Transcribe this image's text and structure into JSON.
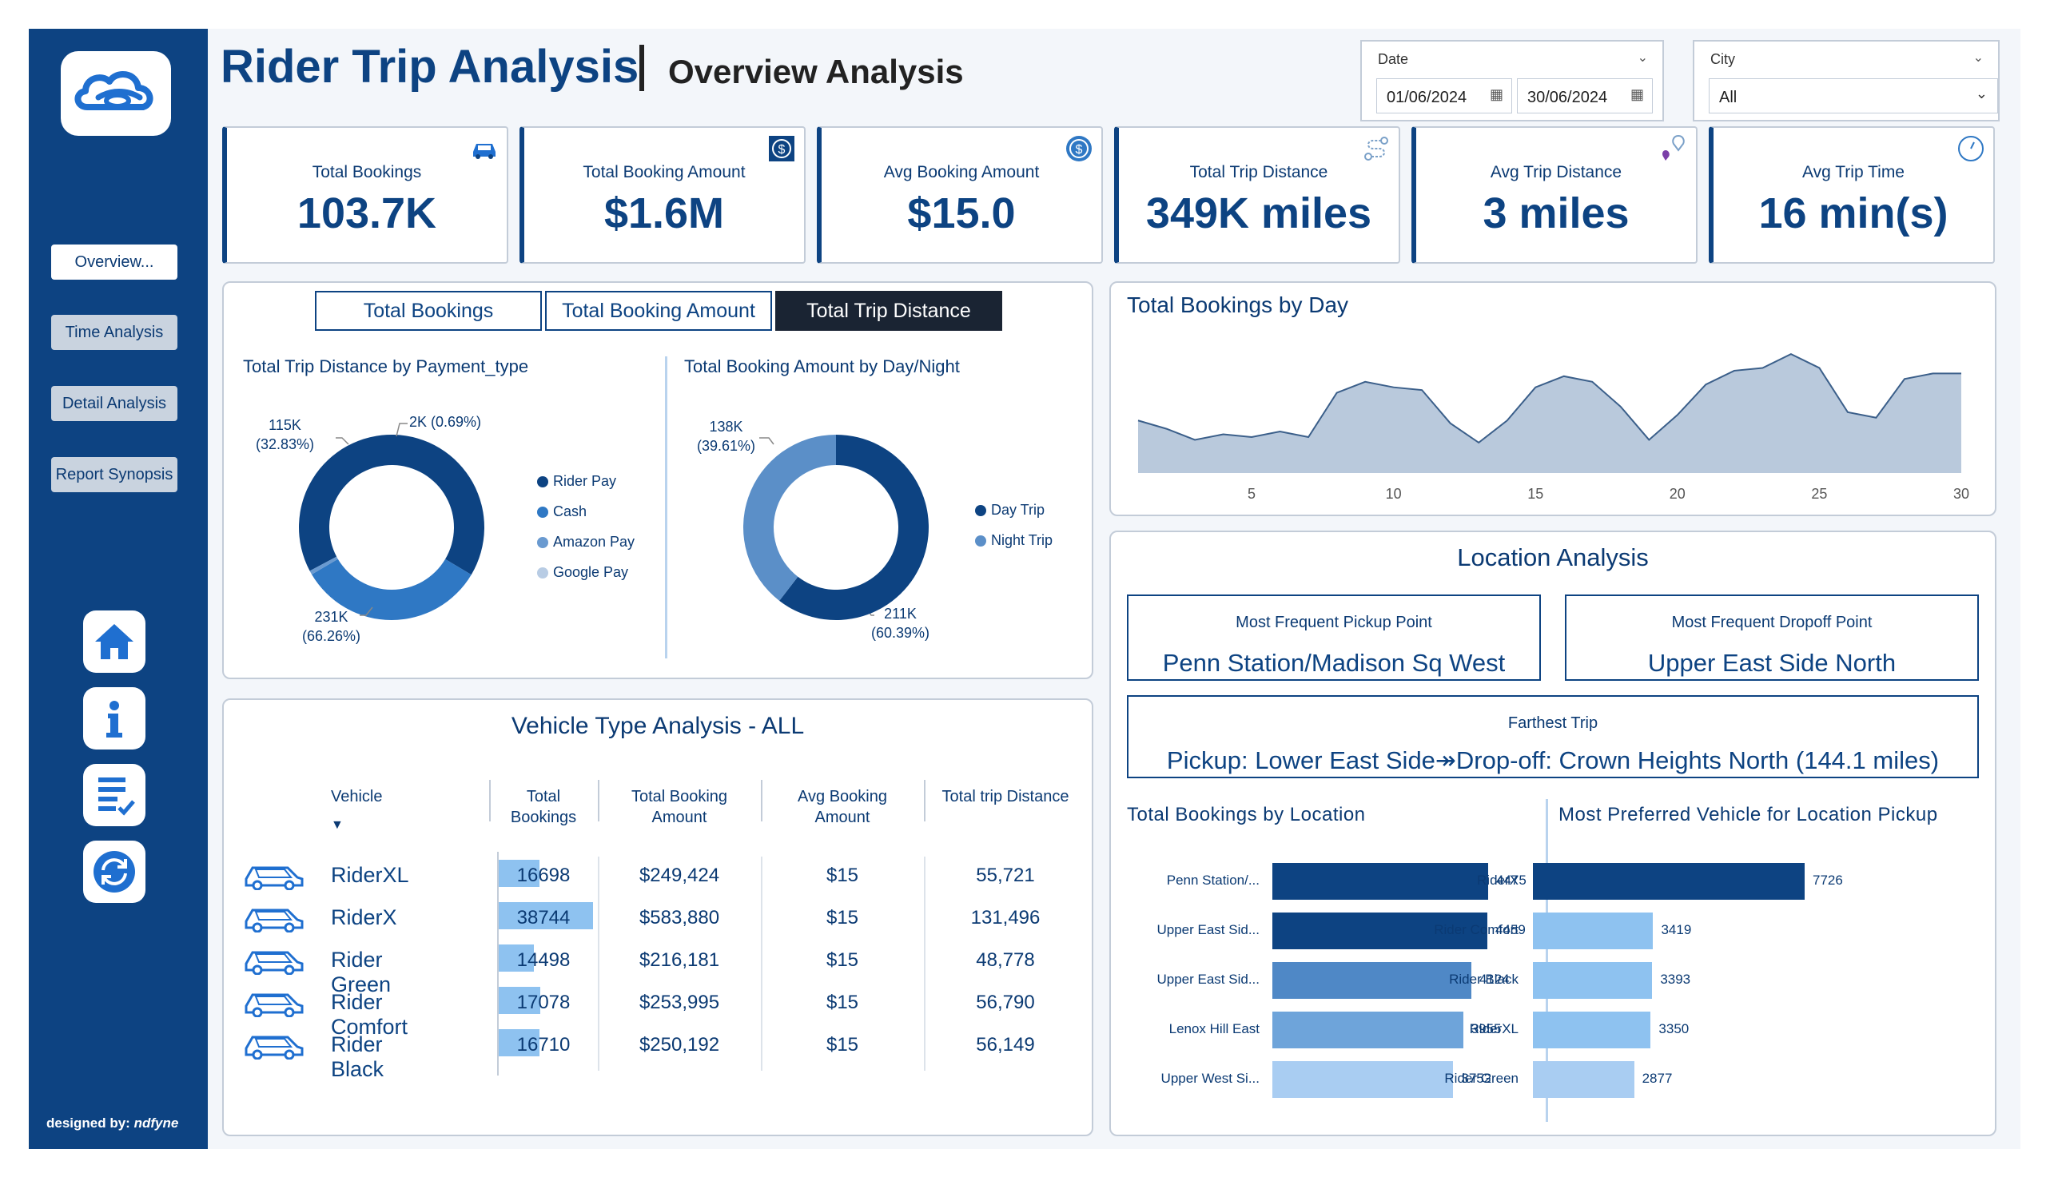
{
  "sidebar": {
    "nav": [
      "Overview...",
      "Time Analysis",
      "Detail Analysis",
      "Report Synopsis"
    ],
    "credit_prefix": "designed by:",
    "credit_name": "ndfyne",
    "icons": [
      "home-icon",
      "info-icon",
      "report-icon",
      "refresh-icon"
    ]
  },
  "header": {
    "title": "Rider Trip Analysis",
    "subtitle": "Overview Analysis"
  },
  "filters": {
    "date_label": "Date",
    "date_start": "01/06/2024",
    "date_end": "30/06/2024",
    "city_label": "City",
    "city_value": "All"
  },
  "kpis": [
    {
      "label": "Total Bookings",
      "value": "103.7K",
      "icon": "car-icon"
    },
    {
      "label": "Total Booking Amount",
      "value": "$1.6M",
      "icon": "dollar-icon"
    },
    {
      "label": "Avg Booking Amount",
      "value": "$15.0",
      "icon": "coin-icon"
    },
    {
      "label": "Total Trip Distance",
      "value": "349K miles",
      "icon": "route-icon"
    },
    {
      "label": "Avg Trip Distance",
      "value": "3 miles",
      "icon": "pin-icon"
    },
    {
      "label": "Avg Trip Time",
      "value": "16 min(s)",
      "icon": "clock-icon"
    }
  ],
  "tabs": [
    "Total Bookings",
    "Total Booking Amount",
    "Total Trip Distance"
  ],
  "active_tab": 2,
  "donut_payment": {
    "title": "Total Trip Distance by Payment_type",
    "legend": [
      "Rider Pay",
      "Cash",
      "Amazon Pay",
      "Google Pay"
    ],
    "labels": {
      "top_left_value": "115K",
      "top_left_pct": "(32.83%)",
      "top_right": "2K (0.69%)",
      "bottom_value": "231K",
      "bottom_pct": "(66.26%)"
    }
  },
  "donut_daynight": {
    "title": "Total Booking Amount by Day/Night",
    "legend": [
      "Day Trip",
      "Night Trip"
    ],
    "labels": {
      "left_value": "138K",
      "left_pct": "(39.61%)",
      "right_value": "211K",
      "right_pct": "(60.39%)"
    }
  },
  "vehicle_table": {
    "title": "Vehicle Type Analysis - ALL",
    "headers": {
      "vehicle": "Vehicle",
      "bookings": [
        "Total",
        "Bookings"
      ],
      "amount": [
        "Total Booking",
        "Amount"
      ],
      "avg": [
        "Avg Booking",
        "Amount"
      ],
      "distance": "Total trip Distance"
    },
    "rows": [
      {
        "name": "RiderXL",
        "bookings": "16698",
        "amount": "$249,424",
        "avg": "$15",
        "distance": "55,721"
      },
      {
        "name": "RiderX",
        "bookings": "38744",
        "amount": "$583,880",
        "avg": "$15",
        "distance": "131,496"
      },
      {
        "name": "Rider Green",
        "bookings": "14498",
        "amount": "$216,181",
        "avg": "$15",
        "distance": "48,778"
      },
      {
        "name": "Rider Comfort",
        "bookings": "17078",
        "amount": "$253,995",
        "avg": "$15",
        "distance": "56,790"
      },
      {
        "name": "Rider Black",
        "bookings": "16710",
        "amount": "$250,192",
        "avg": "$15",
        "distance": "56,149"
      }
    ]
  },
  "location": {
    "title": "Location Analysis",
    "pickup_label": "Most Frequent Pickup Point",
    "pickup_value": "Penn Station/Madison Sq West",
    "dropoff_label": "Most Frequent Dropoff Point",
    "dropoff_value": "Upper East Side North",
    "farthest_label": "Farthest Trip",
    "farthest_value": "Pickup: Lower East Side↠Drop-off: Crown Heights North (144.1 miles)"
  },
  "colors": {
    "navy": "#0d4382",
    "mid": "#2f78c4",
    "steel": "#5b8fc8",
    "light": "#a9cdf2",
    "area": "#b9c9dc"
  },
  "chart_data": [
    {
      "type": "pie",
      "title": "Total Trip Distance by Payment_type",
      "categories": [
        "Rider Pay",
        "Cash",
        "Amazon Pay",
        "Google Pay"
      ],
      "values": [
        231,
        115,
        2.4,
        0
      ],
      "unit": "K"
    },
    {
      "type": "pie",
      "title": "Total Booking Amount by Day/Night",
      "categories": [
        "Day Trip",
        "Night Trip"
      ],
      "values": [
        211,
        138
      ],
      "unit": "K"
    },
    {
      "type": "area",
      "title": "Total Bookings by Day",
      "x": [
        1,
        2,
        3,
        4,
        5,
        6,
        7,
        8,
        9,
        10,
        11,
        12,
        13,
        14,
        15,
        16,
        17,
        18,
        19,
        20,
        21,
        22,
        23,
        24,
        25,
        26,
        27,
        28,
        29,
        30
      ],
      "y": [
        3350,
        3200,
        3000,
        3100,
        3050,
        3150,
        3050,
        3850,
        4050,
        3950,
        3900,
        3300,
        2950,
        3350,
        3950,
        4150,
        4050,
        3600,
        3000,
        3450,
        4000,
        4250,
        4300,
        4550,
        4300,
        3500,
        3400,
        4100,
        4200,
        4200
      ],
      "xticks": [
        "5",
        "10",
        "15",
        "20",
        "25",
        "30"
      ],
      "xtick_values": [
        5,
        10,
        15,
        20,
        25,
        30
      ],
      "xlim": [
        1,
        30
      ],
      "ylim": [
        2400,
        5000
      ]
    },
    {
      "type": "bar",
      "orientation": "horizontal",
      "title": "Total Bookings by Location",
      "categories": [
        "Penn Station/...",
        "Upper East Sid...",
        "Upper East Sid...",
        "Lenox Hill East",
        "Upper West Si..."
      ],
      "values": [
        4475,
        4459,
        4124,
        3955,
        3752
      ]
    },
    {
      "type": "bar",
      "orientation": "horizontal",
      "title": "Most Preferred Vehicle for Location Pickup",
      "categories": [
        "RiderX",
        "Rider Comfort",
        "Rider Black",
        "RiderXL",
        "Rider Green"
      ],
      "values": [
        7726,
        3419,
        3393,
        3350,
        2877
      ]
    }
  ]
}
